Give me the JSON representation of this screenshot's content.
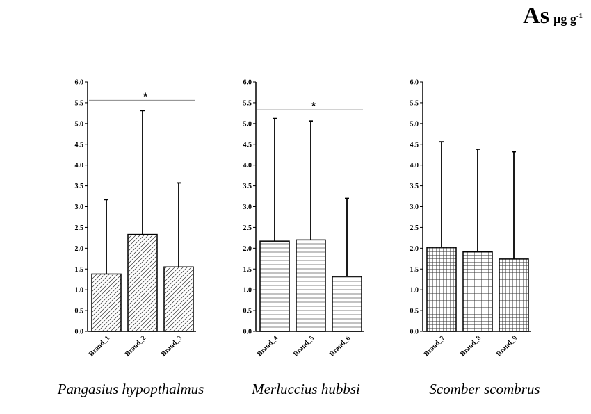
{
  "header": {
    "element": "As",
    "unit_base": "µg g",
    "unit_exp": "-1"
  },
  "chart_data": [
    {
      "type": "bar",
      "species": "Pangasius hypopthalmus",
      "categories": [
        "Brand_1",
        "Brand_2",
        "Brand_3"
      ],
      "values": [
        1.38,
        2.33,
        1.55
      ],
      "error_upper": [
        3.17,
        5.31,
        3.57
      ],
      "pattern": "diagonal-hatch",
      "ylim": [
        0,
        6.0
      ],
      "yticks": [
        "0.0",
        "0.5",
        "1.0",
        "1.5",
        "2.0",
        "2.5",
        "3.0",
        "3.5",
        "4.0",
        "4.5",
        "5.0",
        "5.5",
        "6.0"
      ],
      "significance": {
        "from": "Brand_1",
        "to": "Brand_3",
        "label": "*",
        "y": 5.56
      }
    },
    {
      "type": "bar",
      "species": "Merluccius hubbsi",
      "categories": [
        "Brand_4",
        "Brand_5",
        "Brand_6"
      ],
      "values": [
        2.17,
        2.2,
        1.32
      ],
      "error_upper": [
        5.12,
        5.06,
        3.2
      ],
      "pattern": "horizontal-lines",
      "ylim": [
        0,
        6.0
      ],
      "yticks": [
        "0.0",
        "0.5",
        "1.0",
        "1.5",
        "2.0",
        "2.5",
        "3.0",
        "3.5",
        "4.0",
        "4.5",
        "5.0",
        "5.5",
        "6.0"
      ],
      "significance": {
        "from": "Brand_4",
        "to": "Brand_6",
        "label": "*",
        "y": 5.33
      }
    },
    {
      "type": "bar",
      "species": "Scomber scombrus",
      "categories": [
        "Brand_7",
        "Brand_8",
        "Brand_9"
      ],
      "values": [
        2.02,
        1.91,
        1.74
      ],
      "error_upper": [
        4.56,
        4.38,
        4.32
      ],
      "pattern": "grid",
      "ylim": [
        0,
        6.0
      ],
      "yticks": [
        "0.0",
        "0.5",
        "1.0",
        "1.5",
        "2.0",
        "2.5",
        "3.0",
        "3.5",
        "4.0",
        "4.5",
        "5.0",
        "5.5",
        "6.0"
      ]
    }
  ]
}
